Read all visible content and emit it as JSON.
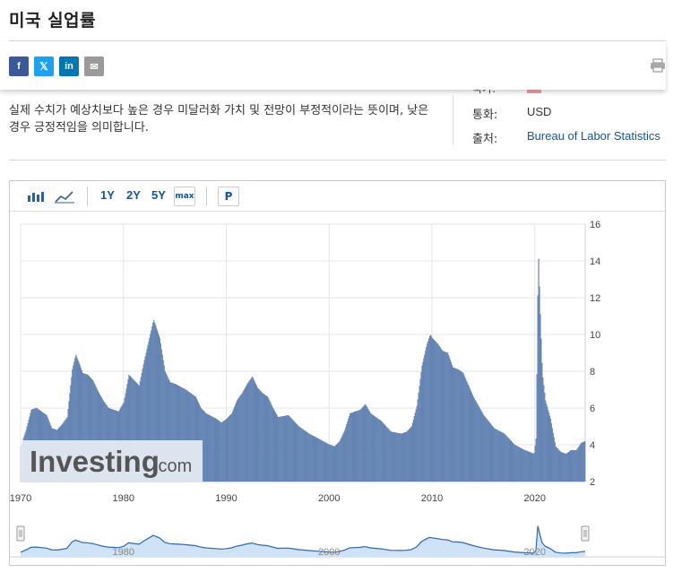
{
  "page": {
    "title": "미국 실업률"
  },
  "share": {
    "facebook_icon": "f",
    "twitter_icon": "𝕏",
    "linkedin_icon": "in",
    "email_icon": "✉",
    "print_icon": "printer-icon"
  },
  "description": "실제 수치가 예상치보다 높은 경우 미달러화 가치 및 전망이 부정적이라는 뜻이며, 낮은 경우 긍정적임을 의미합니다.",
  "info": {
    "hidden_label": "국가:",
    "currency_label": "통화:",
    "currency_value": "USD",
    "source_label": "출처:",
    "source_value": "Bureau of Labor Statistics"
  },
  "toolbar": {
    "bar_chart_icon": "bar-chart-icon",
    "line_chart_icon": "line-chart-icon",
    "range_1y": "1Y",
    "range_2y": "2Y",
    "range_5y": "5Y",
    "range_max": "max",
    "pin_button": "P"
  },
  "watermark": {
    "brand": "Investing",
    "suffix": ".com"
  },
  "colors": {
    "bar": "#6f8fbd",
    "bar_edge": "#4f6fa0",
    "navigator_fill": "#cfe2f6",
    "navigator_line": "#2f68b0",
    "link": "#1256a0"
  },
  "chart_data": {
    "type": "bar",
    "title": "",
    "xlabel": "",
    "ylabel": "",
    "x_ticks": [
      "1970",
      "1980",
      "1990",
      "2000",
      "2010",
      "2020"
    ],
    "y_ticks": [
      "2",
      "4",
      "6",
      "8",
      "10",
      "12",
      "14",
      "16"
    ],
    "xlim": [
      1970,
      2024.9
    ],
    "ylim": [
      2,
      16
    ],
    "grid": true,
    "y_axis_side": "right",
    "navigator_ticks": [
      "1980",
      "2000",
      "2020"
    ],
    "series": [
      {
        "name": "",
        "points": [
          [
            1970.0,
            3.9
          ],
          [
            1970.5,
            4.8
          ],
          [
            1971.0,
            5.9
          ],
          [
            1971.5,
            6.0
          ],
          [
            1972.0,
            5.8
          ],
          [
            1972.5,
            5.6
          ],
          [
            1973.0,
            4.9
          ],
          [
            1973.5,
            4.8
          ],
          [
            1974.0,
            5.1
          ],
          [
            1974.5,
            5.5
          ],
          [
            1975.0,
            8.1
          ],
          [
            1975.33,
            8.9
          ],
          [
            1975.75,
            8.3
          ],
          [
            1976.0,
            7.9
          ],
          [
            1976.5,
            7.8
          ],
          [
            1977.0,
            7.5
          ],
          [
            1977.5,
            6.9
          ],
          [
            1978.0,
            6.4
          ],
          [
            1978.5,
            6.0
          ],
          [
            1979.0,
            5.9
          ],
          [
            1979.5,
            5.8
          ],
          [
            1980.0,
            6.3
          ],
          [
            1980.5,
            7.8
          ],
          [
            1981.0,
            7.5
          ],
          [
            1981.5,
            7.2
          ],
          [
            1982.0,
            8.6
          ],
          [
            1982.5,
            9.8
          ],
          [
            1982.9,
            10.8
          ],
          [
            1983.5,
            9.8
          ],
          [
            1984.0,
            8.0
          ],
          [
            1984.5,
            7.4
          ],
          [
            1985.0,
            7.3
          ],
          [
            1986.0,
            7.0
          ],
          [
            1987.0,
            6.6
          ],
          [
            1987.5,
            6.0
          ],
          [
            1988.0,
            5.7
          ],
          [
            1989.0,
            5.4
          ],
          [
            1989.5,
            5.2
          ],
          [
            1990.0,
            5.4
          ],
          [
            1990.5,
            5.7
          ],
          [
            1991.0,
            6.4
          ],
          [
            1991.5,
            6.8
          ],
          [
            1992.0,
            7.3
          ],
          [
            1992.5,
            7.7
          ],
          [
            1993.0,
            7.1
          ],
          [
            1993.5,
            6.8
          ],
          [
            1994.0,
            6.6
          ],
          [
            1994.5,
            6.0
          ],
          [
            1995.0,
            5.5
          ],
          [
            1996.0,
            5.6
          ],
          [
            1996.5,
            5.3
          ],
          [
            1997.0,
            5.0
          ],
          [
            1998.0,
            4.6
          ],
          [
            1999.0,
            4.3
          ],
          [
            2000.0,
            4.0
          ],
          [
            2000.5,
            3.9
          ],
          [
            2001.0,
            4.2
          ],
          [
            2001.5,
            4.8
          ],
          [
            2002.0,
            5.7
          ],
          [
            2002.5,
            5.8
          ],
          [
            2003.0,
            5.9
          ],
          [
            2003.5,
            6.2
          ],
          [
            2004.0,
            5.7
          ],
          [
            2005.0,
            5.3
          ],
          [
            2006.0,
            4.7
          ],
          [
            2007.0,
            4.6
          ],
          [
            2007.5,
            4.7
          ],
          [
            2008.0,
            5.0
          ],
          [
            2008.5,
            6.1
          ],
          [
            2009.0,
            8.3
          ],
          [
            2009.5,
            9.5
          ],
          [
            2009.8,
            10.0
          ],
          [
            2010.0,
            9.8
          ],
          [
            2010.5,
            9.5
          ],
          [
            2011.0,
            9.1
          ],
          [
            2011.5,
            9.0
          ],
          [
            2012.0,
            8.2
          ],
          [
            2012.5,
            8.1
          ],
          [
            2013.0,
            7.9
          ],
          [
            2014.0,
            6.6
          ],
          [
            2015.0,
            5.6
          ],
          [
            2016.0,
            4.9
          ],
          [
            2017.0,
            4.6
          ],
          [
            2018.0,
            4.0
          ],
          [
            2019.0,
            3.7
          ],
          [
            2019.9,
            3.5
          ],
          [
            2020.1,
            4.4
          ],
          [
            2020.3,
            14.7
          ],
          [
            2020.5,
            11.1
          ],
          [
            2020.7,
            7.9
          ],
          [
            2021.0,
            6.4
          ],
          [
            2021.5,
            5.4
          ],
          [
            2022.0,
            3.9
          ],
          [
            2022.5,
            3.6
          ],
          [
            2023.0,
            3.5
          ],
          [
            2023.5,
            3.7
          ],
          [
            2024.0,
            3.7
          ],
          [
            2024.5,
            4.1
          ],
          [
            2024.9,
            4.2
          ]
        ]
      }
    ]
  }
}
